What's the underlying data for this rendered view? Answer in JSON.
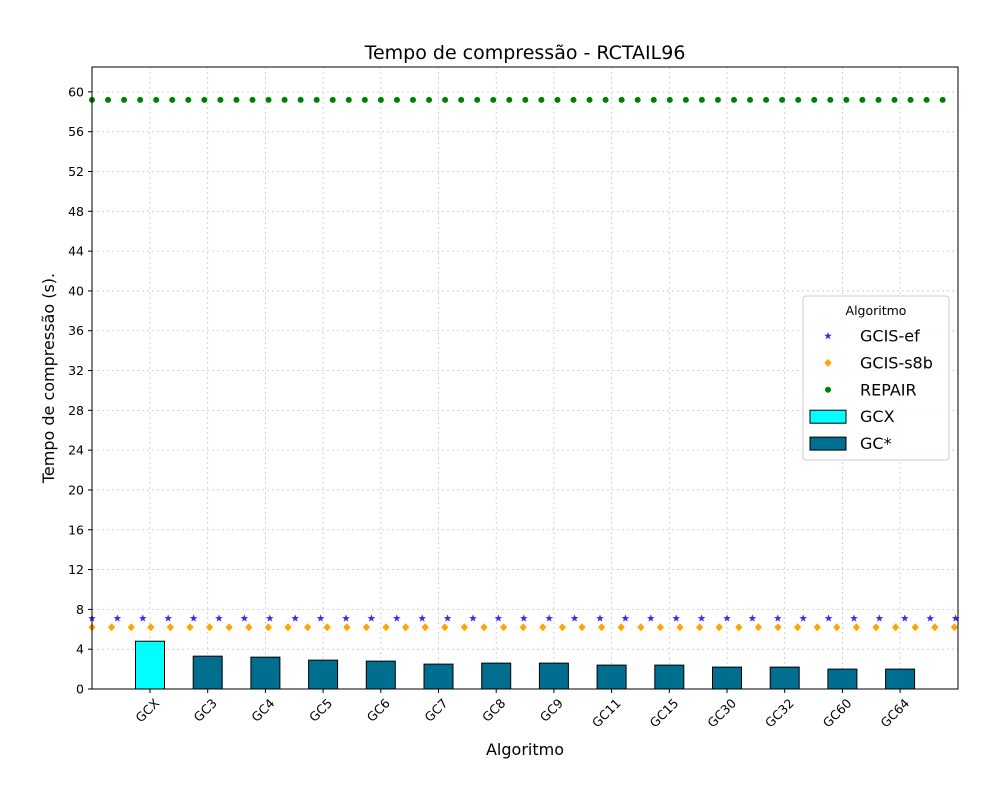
{
  "chart_data": {
    "type": "bar",
    "title": "Tempo de compressão -  RCTAIL96",
    "xlabel": "Algoritmo",
    "ylabel": "Tempo de compressão (s).",
    "categories": [
      "GCX",
      "GC3",
      "GC4",
      "GC5",
      "GC6",
      "GC7",
      "GC8",
      "GC9",
      "GC11",
      "GC15",
      "GC30",
      "GC32",
      "GC60",
      "GC64"
    ],
    "ylim": [
      0,
      62.5
    ],
    "yticks": [
      0,
      4,
      8,
      12,
      16,
      20,
      24,
      28,
      32,
      36,
      40,
      44,
      48,
      52,
      56,
      60
    ],
    "grid": true,
    "legend": {
      "title": "Algoritmo",
      "placement": "center-right",
      "entries": [
        "GCIS-ef",
        "GCIS-s8b",
        "REPAIR",
        "GCX",
        "GC*"
      ]
    },
    "bars": [
      {
        "name": "GCX",
        "color": "#00ffff",
        "categories": [
          "GCX"
        ],
        "values": [
          4.8
        ]
      },
      {
        "name": "GC*",
        "color": "#006e8f",
        "categories": [
          "GC3",
          "GC4",
          "GC5",
          "GC6",
          "GC7",
          "GC8",
          "GC9",
          "GC11",
          "GC15",
          "GC30",
          "GC32",
          "GC60",
          "GC64"
        ],
        "values": [
          3.3,
          3.2,
          2.9,
          2.8,
          2.5,
          2.6,
          2.6,
          2.4,
          2.4,
          2.2,
          2.2,
          2.0,
          2.0
        ]
      }
    ],
    "reference_lines": [
      {
        "name": "GCIS-ef",
        "value": 7.1,
        "color": "#3333ee",
        "marker": "star"
      },
      {
        "name": "GCIS-s8b",
        "value": 6.2,
        "color": "#ffa500",
        "marker": "diamond"
      },
      {
        "name": "REPAIR",
        "value": 59.2,
        "color": "#008000",
        "marker": "circle"
      }
    ]
  }
}
